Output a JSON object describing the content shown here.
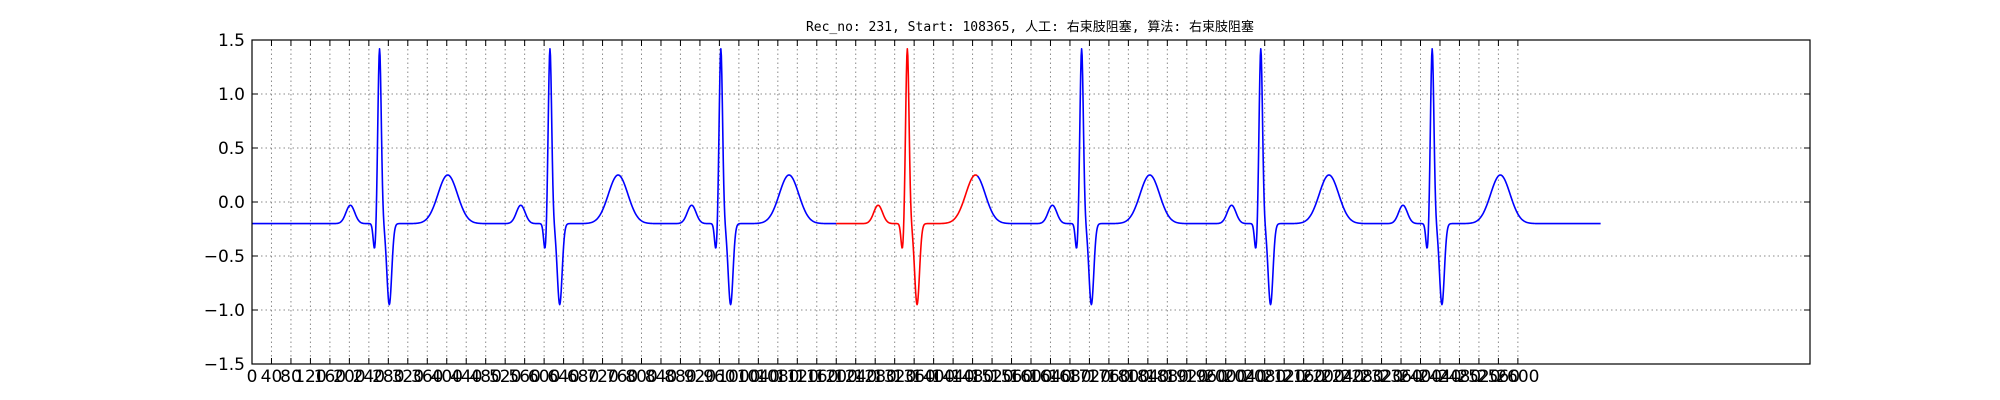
{
  "chart_data": {
    "type": "line",
    "title": "Rec_no: 231, Start: 108365, 人工: 右束肢阻塞, 算法: 右束肢阻塞",
    "xlabel": "",
    "ylabel": "",
    "xlim": [
      0,
      3200
    ],
    "ylim": [
      -1.5,
      1.5
    ],
    "grid": true,
    "x_ticks": [
      0,
      40,
      80,
      120,
      160,
      200,
      240,
      280,
      320,
      360,
      400,
      440,
      480,
      520,
      560,
      600,
      640,
      680,
      720,
      760,
      800,
      840,
      880,
      920,
      960,
      1000,
      1040,
      1080,
      1120,
      1160,
      1200,
      1240,
      1280,
      1320,
      1360,
      1400,
      1440,
      1480,
      1520,
      1560,
      1600,
      1640,
      1680,
      1720,
      1760,
      1800,
      1840,
      1880,
      1920,
      1960,
      2000,
      2040,
      2080,
      2120,
      2160,
      2200,
      2240,
      2280,
      2320,
      2360,
      2400,
      2440,
      2480,
      2520,
      2560,
      2600
    ],
    "x_tick_labels": [
      "0",
      "40",
      "80",
      "120",
      "160",
      "200",
      "240",
      "280",
      "320",
      "360",
      "400",
      "440",
      "480",
      "520",
      "560",
      "600",
      "640",
      "680",
      "720",
      "760",
      "800",
      "840",
      "880",
      "920",
      "960",
      "1000",
      "1040",
      "1080",
      "1120",
      "1160",
      "1200",
      "1240",
      "1280",
      "1320",
      "1360",
      "1400",
      "1440",
      "1480",
      "1520",
      "1560",
      "1600",
      "1640",
      "1680",
      "1720",
      "1760",
      "1800",
      "1840",
      "1880",
      "1920",
      "1960",
      "2000",
      "2040",
      "2080",
      "2120",
      "2160",
      "2200",
      "2240",
      "2280",
      "2320",
      "2360",
      "2400",
      "2440",
      "2480",
      "2520",
      "2560",
      "2600"
    ],
    "y_ticks": [
      -1.5,
      -1.0,
      -0.5,
      0.0,
      0.5,
      1.0,
      1.5
    ],
    "y_tick_labels": [
      "−1.5",
      "−1.0",
      "−0.5",
      "0.0",
      "0.5",
      "1.0",
      "1.5"
    ],
    "beats": [
      {
        "r_x": 262,
        "color": "#0000ff"
      },
      {
        "r_x": 612,
        "color": "#0000ff"
      },
      {
        "r_x": 963,
        "color": "#0000ff"
      },
      {
        "r_x": 1346,
        "color": "#ff0000"
      },
      {
        "r_x": 1704,
        "color": "#0000ff"
      },
      {
        "r_x": 2072,
        "color": "#0000ff"
      },
      {
        "r_x": 2424,
        "color": "#0000ff"
      }
    ],
    "segments": [
      {
        "x_start": 0,
        "x_end": 1200,
        "color": "#0000ff"
      },
      {
        "x_start": 1200,
        "x_end": 1490,
        "color": "#ff0000"
      },
      {
        "x_start": 1490,
        "x_end": 2770,
        "color": "#0000ff"
      }
    ],
    "beat_wave": {
      "baseline": -0.2,
      "p_wave": {
        "offset": -60,
        "width": 9,
        "amp": 0.17
      },
      "q_wave": {
        "offset": -10,
        "width": 3,
        "amp": -0.25
      },
      "r_wave": {
        "offset": 0,
        "width": 3.5,
        "amp": 1.62
      },
      "s_wave": {
        "offset": 20,
        "width": 5,
        "amp": -0.75
      },
      "t_wave": {
        "offset": 140,
        "width": 20,
        "amp": 0.45
      }
    }
  }
}
